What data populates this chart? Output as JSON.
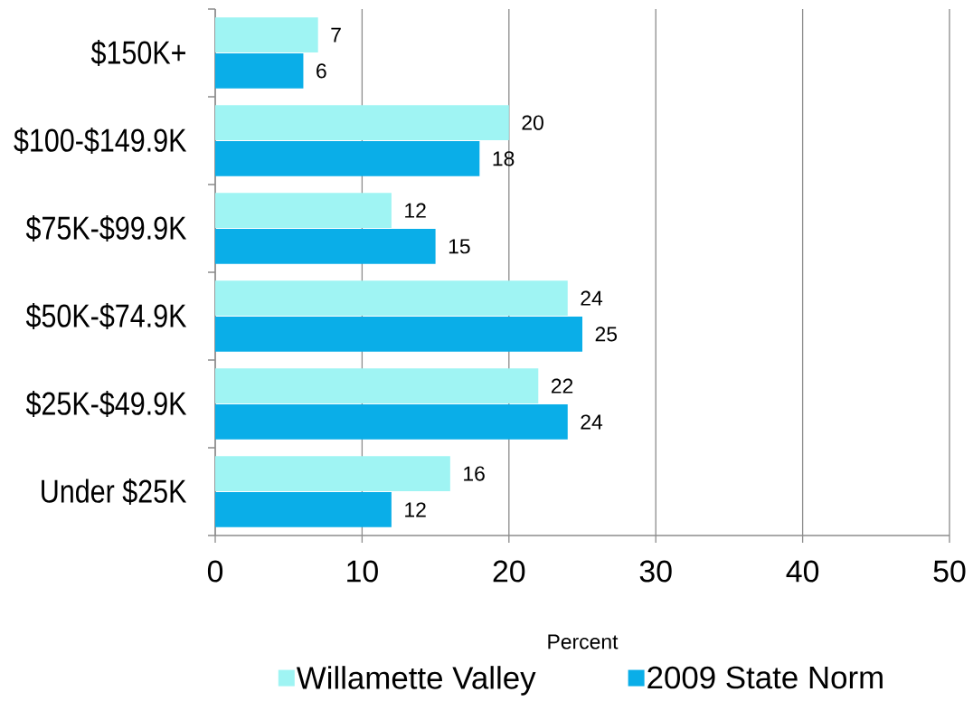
{
  "chart_data": {
    "type": "bar",
    "orientation": "horizontal",
    "xlabel": "Percent",
    "categories": [
      "$150K+",
      "$100-$149.9K",
      "$75K-$99.9K",
      "$50K-$74.9K",
      "$25K-$49.9K",
      "Under $25K"
    ],
    "series": [
      {
        "name": "Willamette Valley",
        "color": "#9ff4f3",
        "values": [
          7,
          20,
          12,
          24,
          22,
          16
        ]
      },
      {
        "name": "2009 State Norm",
        "color": "#0aaee8",
        "values": [
          6,
          18,
          15,
          25,
          24,
          12
        ]
      }
    ],
    "xlim": [
      0,
      50
    ],
    "xticks": [
      0,
      10,
      20,
      30,
      40,
      50
    ],
    "grid": "x",
    "legend": "bottom",
    "data_labels": true
  }
}
